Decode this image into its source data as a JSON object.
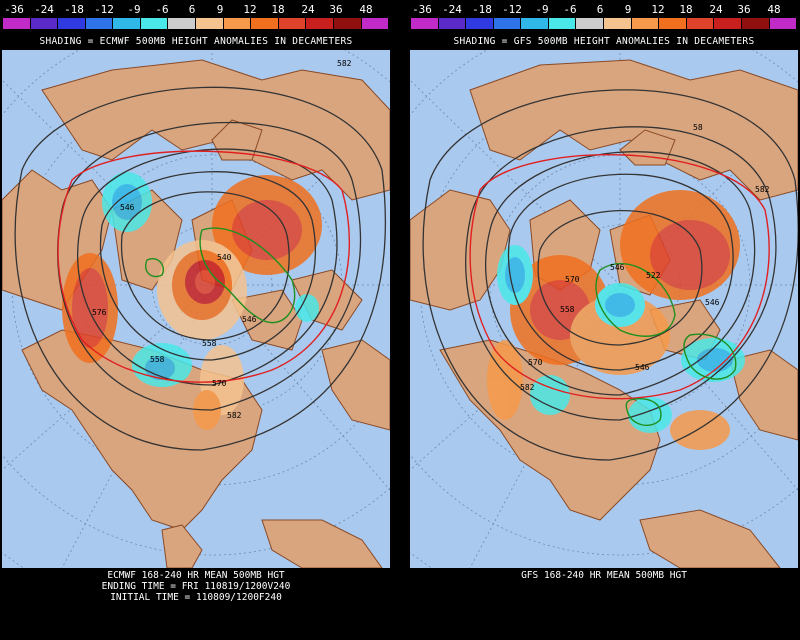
{
  "colorbar": {
    "labels": [
      "-36",
      "-24",
      "-18",
      "-12",
      "-9",
      "-6",
      "6",
      "9",
      "12",
      "18",
      "24",
      "36",
      "48"
    ],
    "colors": [
      "#c02bc8",
      "#5a2bc8",
      "#2f3be0",
      "#2f73e8",
      "#2fb8e8",
      "#4ae8e8",
      "#cccccc",
      "#f5c38f",
      "#f59a4a",
      "#f0701f",
      "#e0432b",
      "#c81f1f",
      "#901010",
      "#c02bc8"
    ]
  },
  "left": {
    "shading_caption": "SHADING = ECMWF 500MB HEIGHT ANOMALIES IN DECAMETERS",
    "footer": [
      "ECMWF 168-240 HR MEAN 500MB HGT",
      "ENDING TIME = FRI 110819/1200V240",
      "INITIAL TIME = 110809/1200F240"
    ],
    "contour_labels": [
      "582",
      "540",
      "546",
      "558",
      "576",
      "570",
      "582",
      "558",
      "546"
    ]
  },
  "right": {
    "shading_caption": "SHADING = GFS 500MB HEIGHT ANOMALIES IN DECAMETERS",
    "footer": [
      "GFS 168-240 HR MEAN 500MB HGT"
    ],
    "contour_labels": [
      "58",
      "570",
      "546",
      "522",
      "546",
      "558",
      "570",
      "582",
      "546",
      "582"
    ]
  },
  "colors": {
    "ocean": "#aac9ee",
    "land": "#d9a57f",
    "border": "#8a4a25",
    "contour": "#333333",
    "red_contour": "#e02020",
    "green_contour": "#1f8f1f"
  }
}
